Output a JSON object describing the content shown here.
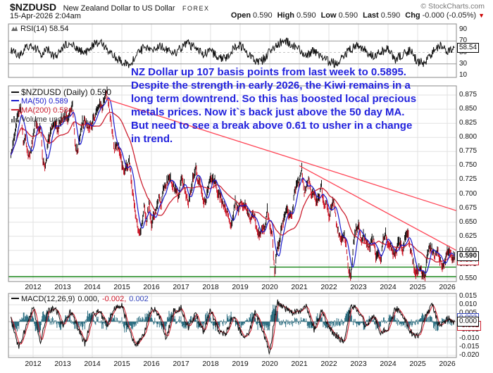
{
  "header": {
    "symbol": "$NZDUSD",
    "name": "New Zealand Dollar to US Dollar",
    "exchange": "FOREX",
    "copyright": "© StockCharts.com",
    "datetime": "15-Apr-2026 2:04am",
    "quote": {
      "open_label": "Open",
      "open_value": "0.590",
      "high_label": "High",
      "high_value": "0.590",
      "low_label": "Low",
      "low_value": "0.590",
      "last_label": "Last",
      "last_value": "0.590",
      "chg_label": "Chg",
      "chg_value": "-0.000 (-0.05%)"
    }
  },
  "icons": {
    "change_down": "▼"
  },
  "rsi_panel": {
    "label": "RSI(14) 58.54",
    "value_tag": "58.54"
  },
  "main_panel": {
    "legend_price": "$NZDUSD (Daily) 0.590",
    "legend_ma50": "MA(50) 0.589",
    "legend_ma200": "MA(200) 0.584",
    "legend_volume": "Volume undef",
    "price_tag": "0.590",
    "ma200_tag": "0.584"
  },
  "macd_panel": {
    "label_name": "MACD(12,26,9)",
    "value_macd": "0.000,",
    "value_signal": "-0.002,",
    "value_hist": "0.002",
    "tag_hist": "0.002",
    "tag_macd": "0.000",
    "tag_signal": "-0.002"
  },
  "annotation": {
    "lines": [
      "NZ Dollar up 107 basis points from last week to 0.5895.",
      "Despite the strength in early 2026, the Kiwi remains in a",
      "long term downtrend. So this has boosted local precious",
      "metals prices. Now it`s back just above the 50 day MA.",
      "But need to see a break above 0.61 to usher in a change",
      "in trend."
    ]
  },
  "colors": {
    "price_up": "#111111",
    "price_down": "#cc1122",
    "ma50": "#1a1acc",
    "ma200": "#cc2030",
    "trendline": "#ff4455",
    "support": "#007a00",
    "annotation": "#2222dd",
    "macd_line": "#111111",
    "macd_signal": "#cc1122",
    "macd_hist": "#2a6d80",
    "grid": "#e2e2e2",
    "panel_border": "#8a8a8a"
  },
  "chart_data": [
    {
      "type": "candlestick",
      "panel": "price",
      "symbol": "$NZDUSD",
      "timeframe": "Daily",
      "last": 0.59,
      "x_start": 2011.25,
      "x_step": 0.0833,
      "close": [
        0.765,
        0.79,
        0.815,
        0.845,
        0.855,
        0.79,
        0.8,
        0.765,
        0.775,
        0.8,
        0.83,
        0.82,
        0.815,
        0.755,
        0.748,
        0.79,
        0.805,
        0.825,
        0.82,
        0.815,
        0.825,
        0.835,
        0.838,
        0.83,
        0.845,
        0.855,
        0.79,
        0.775,
        0.8,
        0.825,
        0.83,
        0.818,
        0.82,
        0.825,
        0.838,
        0.85,
        0.862,
        0.853,
        0.872,
        0.88,
        0.848,
        0.812,
        0.78,
        0.787,
        0.778,
        0.755,
        0.742,
        0.748,
        0.758,
        0.715,
        0.682,
        0.655,
        0.628,
        0.642,
        0.675,
        0.652,
        0.684,
        0.648,
        0.662,
        0.676,
        0.692,
        0.678,
        0.712,
        0.718,
        0.729,
        0.724,
        0.714,
        0.705,
        0.694,
        0.728,
        0.718,
        0.7,
        0.687,
        0.706,
        0.731,
        0.747,
        0.721,
        0.718,
        0.69,
        0.682,
        0.71,
        0.731,
        0.724,
        0.72,
        0.7,
        0.698,
        0.678,
        0.676,
        0.663,
        0.646,
        0.655,
        0.686,
        0.671,
        0.684,
        0.68,
        0.679,
        0.665,
        0.653,
        0.669,
        0.658,
        0.631,
        0.628,
        0.641,
        0.642,
        0.672,
        0.648,
        0.625,
        0.558,
        0.603,
        0.618,
        0.645,
        0.659,
        0.673,
        0.662,
        0.663,
        0.7,
        0.718,
        0.722,
        0.744,
        0.7,
        0.716,
        0.724,
        0.699,
        0.7,
        0.684,
        0.692,
        0.714,
        0.68,
        0.684,
        0.66,
        0.675,
        0.691,
        0.648,
        0.63,
        0.621,
        0.627,
        0.611,
        0.562,
        0.556,
        0.616,
        0.636,
        0.646,
        0.619,
        0.626,
        0.617,
        0.604,
        0.612,
        0.621,
        0.59,
        0.596,
        0.581,
        0.617,
        0.632,
        0.611,
        0.609,
        0.598,
        0.592,
        0.611,
        0.612,
        0.596,
        0.626,
        0.636,
        0.599,
        0.584,
        0.561,
        0.566,
        0.571,
        0.558,
        0.552,
        0.596,
        0.607,
        0.601,
        0.592,
        0.6,
        0.585,
        0.574,
        0.578,
        0.598,
        0.604,
        0.584,
        0.59
      ],
      "overlays": [
        {
          "name": "MA(50)",
          "last": 0.589
        },
        {
          "name": "MA(200)",
          "last": 0.584
        }
      ],
      "ylim": [
        0.545,
        0.8875
      ],
      "yticks": [
        0.55,
        0.575,
        0.6,
        0.625,
        0.65,
        0.675,
        0.7,
        0.725,
        0.75,
        0.775,
        0.8,
        0.825,
        0.85,
        0.875
      ],
      "xticks_years": [
        2012,
        2013,
        2014,
        2015,
        2016,
        2017,
        2018,
        2019,
        2020,
        2021,
        2022,
        2023,
        2024,
        2025,
        2026
      ],
      "trendlines": [
        {
          "x1": 2014.45,
          "y1": 0.868,
          "x2": 2026.45,
          "y2": 0.668
        },
        {
          "x1": 2021.0,
          "y1": 0.75,
          "x2": 2026.45,
          "y2": 0.596
        }
      ],
      "support_lines": [
        {
          "x1": 2011.17,
          "x2": 2026.45,
          "y": 0.5535
        },
        {
          "x1": 2020.0,
          "x2": 2026.45,
          "y": 0.5705
        }
      ]
    },
    {
      "type": "line",
      "panel": "rsi",
      "indicator": "RSI(14)",
      "current": 58.54,
      "overbought": 70,
      "oversold": 30,
      "midline": 50,
      "x_start": 2011.25,
      "x_step": 0.25,
      "ylim": [
        0,
        100
      ],
      "yticks": [
        90,
        70,
        50,
        30,
        10
      ],
      "values": [
        52,
        45,
        58,
        62,
        48,
        55,
        42,
        60,
        65,
        58,
        48,
        62,
        70,
        55,
        42,
        35,
        30,
        45,
        58,
        52,
        62,
        55,
        48,
        58,
        66,
        56,
        46,
        52,
        42,
        38,
        56,
        62,
        48,
        34,
        36,
        52,
        64,
        70,
        64,
        55,
        46,
        52,
        40,
        34,
        30,
        46,
        56,
        62,
        52,
        42,
        50,
        56,
        38,
        46,
        54,
        34,
        32,
        50,
        62,
        52,
        58.54
      ]
    },
    {
      "type": "line",
      "panel": "macd",
      "indicator": "MACD(12,26,9)",
      "macd_last": 0.0,
      "signal_last": -0.002,
      "hist_last": 0.002,
      "x_start": 2011.25,
      "x_step": 0.25,
      "yticks": [
        0.015,
        0.01,
        0.005,
        -0.005,
        -0.01,
        -0.015,
        -0.02
      ],
      "zero_line": 0,
      "macd": [
        0.002,
        -0.015,
        -0.004,
        0.008,
        -0.012,
        0.006,
        0.008,
        -0.002,
        0.006,
        -0.003,
        -0.013,
        0.004,
        0.006,
        -0.002,
        0.008,
        0.01,
        -0.006,
        -0.014,
        -0.008,
        0.009,
        0.004,
        -0.01,
        0.006,
        0.008,
        -0.004,
        0.005,
        -0.006,
        0.007,
        -0.005,
        -0.008,
        0.004,
        -0.006,
        -0.009,
        0.005,
        -0.004,
        -0.019,
        0.012,
        0.008,
        0.005,
        0.006,
        0.009,
        -0.005,
        0.007,
        -0.004,
        -0.008,
        -0.012,
        0.01,
        0.006,
        -0.003,
        0.004,
        -0.006,
        -0.005,
        0.008,
        0.004,
        -0.006,
        -0.009,
        0.003,
        0.01,
        -0.004,
        0.002,
        0.0
      ]
    }
  ]
}
